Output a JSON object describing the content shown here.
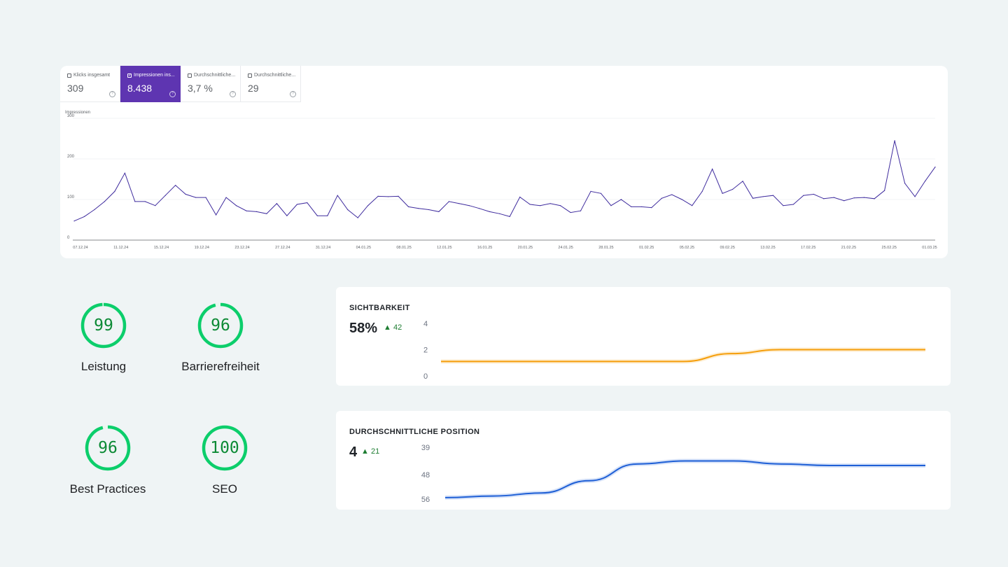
{
  "search_console": {
    "metrics": [
      {
        "label": "Klicks insgesamt",
        "value": "309",
        "checked": false
      },
      {
        "label": "Impressionen ins...",
        "value": "8.438",
        "checked": true
      },
      {
        "label": "Durchschnittliche...",
        "value": "3,7 %",
        "checked": false
      },
      {
        "label": "Durchschnittliche...",
        "value": "29",
        "checked": false
      }
    ],
    "accent_color": "#5e35b1"
  },
  "chart_data": [
    {
      "type": "line",
      "ylabel": "Impressionen",
      "ylim": [
        0,
        300
      ],
      "yticks": [
        "0",
        "100",
        "200",
        "300"
      ],
      "xticks": [
        "07.12.24",
        "11.12.24",
        "15.12.24",
        "19.12.24",
        "23.12.24",
        "27.12.24",
        "31.12.24",
        "04.01.25",
        "08.01.25",
        "12.01.25",
        "16.01.25",
        "20.01.25",
        "24.01.25",
        "28.01.25",
        "01.02.25",
        "05.02.25",
        "09.02.25",
        "13.02.25",
        "17.02.25",
        "21.02.25",
        "25.02.25",
        "01.03.25"
      ],
      "color": "#3f2c9e",
      "series": [
        {
          "values": [
            47,
            58,
            75,
            95,
            120,
            165,
            95,
            95,
            85,
            110,
            135,
            113,
            105,
            105,
            62,
            105,
            85,
            72,
            70,
            65,
            90,
            60,
            88,
            92,
            60,
            60,
            110,
            75,
            55,
            85,
            108,
            107,
            108,
            82,
            78,
            75,
            70,
            95,
            90,
            85,
            78,
            70,
            65,
            58,
            106,
            88,
            85,
            90,
            85,
            68,
            72,
            120,
            115,
            85,
            100,
            82,
            82,
            80,
            103,
            112,
            100,
            85,
            120,
            175,
            115,
            125,
            145,
            103,
            107,
            110,
            85,
            88,
            110,
            113,
            102,
            105,
            97,
            104,
            105,
            102,
            122,
            245,
            140,
            107,
            145,
            180
          ]
        }
      ]
    },
    {
      "type": "line",
      "title": "SICHTBARKEIT",
      "ylim": [
        0,
        4
      ],
      "yticks": [
        "4",
        "2",
        "0"
      ],
      "color": "#f59e0b",
      "x": [
        0,
        1,
        2,
        3,
        4,
        5,
        6,
        7,
        8,
        9,
        10
      ],
      "series": [
        {
          "values": [
            1.1,
            1.1,
            1.1,
            1.1,
            1.1,
            1.1,
            1.7,
            2.0,
            2.0,
            2.0,
            2.0
          ]
        }
      ]
    },
    {
      "type": "line",
      "title": "DURCHSCHNITTLICHE POSITION",
      "yticks": [
        "39",
        "48",
        "56"
      ],
      "ylim": [
        56,
        39
      ],
      "color": "#1e5fd6",
      "x": [
        0,
        1,
        2,
        3,
        4,
        5,
        6,
        7,
        8,
        9,
        10
      ],
      "series": [
        {
          "values": [
            55.5,
            55,
            54,
            50,
            44.5,
            43.5,
            43.5,
            44.5,
            45,
            45,
            45
          ]
        }
      ]
    }
  ],
  "lighthouse": {
    "scores": [
      {
        "value": "99",
        "label": "Leistung",
        "fraction": 0.99
      },
      {
        "value": "96",
        "label": "Barrierefreiheit",
        "fraction": 0.96
      },
      {
        "value": "96",
        "label": "Best Practices",
        "fraction": 0.96
      },
      {
        "value": "100",
        "label": "SEO",
        "fraction": 1.0
      }
    ],
    "ring_color": "#0cce6b"
  },
  "visibility": {
    "title": "SICHTBARKEIT",
    "value": "58%",
    "delta": "42"
  },
  "avg_position": {
    "title": "DURCHSCHNITTLICHE POSITION",
    "value": "4",
    "delta": "21"
  }
}
